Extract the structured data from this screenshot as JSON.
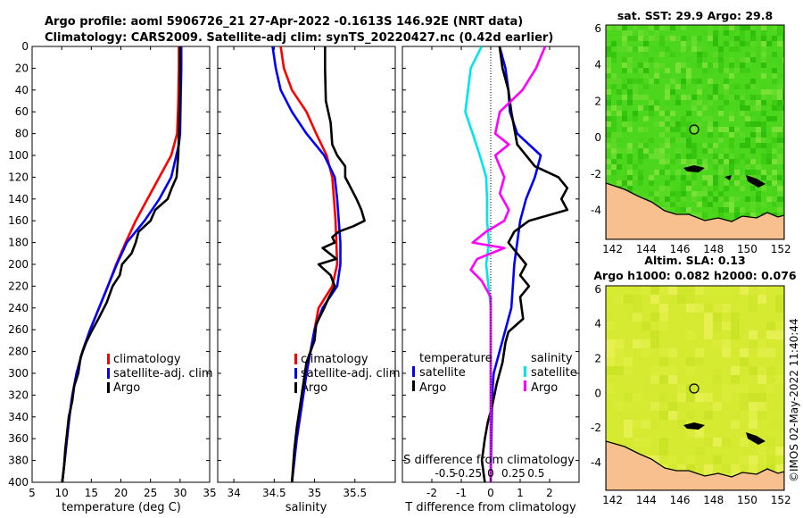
{
  "header": {
    "line1": "Argo profile: aoml 5906726_21 27-Apr-2022 -0.1613S 146.92E (NRT data)",
    "line2": "Climatology: CARS2009. Satellite-adj clim: synTS_20220427.nc (0.42d earlier)"
  },
  "watermark": "©IMOS 02-May-2022 11:40:44",
  "colors": {
    "climatology": "#ff0000",
    "satellite": "#0000ff",
    "argo": "#000000",
    "cyan": "#00e5ee",
    "magenta": "#ff00ff",
    "land": "#f7c08e",
    "sst_bg": "#4cd61c",
    "sla_bg": "#d7ea32"
  },
  "chart_data": [
    {
      "type": "line",
      "id": "temperature",
      "xlabel": "temperature (deg C)",
      "ylabel": "",
      "xlim": [
        5,
        35
      ],
      "ylim": [
        0,
        400
      ],
      "yticks": [
        0,
        20,
        40,
        60,
        80,
        100,
        120,
        140,
        160,
        180,
        200,
        220,
        240,
        260,
        280,
        300,
        320,
        340,
        360,
        380,
        400
      ],
      "xticks": [
        5,
        10,
        15,
        20,
        25,
        30,
        35
      ],
      "legend": [
        "climatology",
        "satellite-adj. clim",
        "Argo"
      ],
      "series": [
        {
          "name": "climatology",
          "color": "#ff0000",
          "points": [
            [
              29.8,
              0
            ],
            [
              29.8,
              20
            ],
            [
              29.7,
              50
            ],
            [
              29.5,
              80
            ],
            [
              28.5,
              100
            ],
            [
              26.5,
              120
            ],
            [
              24.5,
              140
            ],
            [
              22.5,
              160
            ],
            [
              20.8,
              180
            ],
            [
              19.2,
              200
            ],
            [
              17.8,
              220
            ],
            [
              16.3,
              240
            ],
            [
              14.8,
              260
            ],
            [
              13.5,
              280
            ],
            [
              12.5,
              300
            ],
            [
              11.8,
              320
            ],
            [
              11.3,
              340
            ],
            [
              10.9,
              360
            ],
            [
              10.5,
              380
            ],
            [
              10.1,
              400
            ]
          ]
        },
        {
          "name": "satellite-adj. clim",
          "color": "#0000ff",
          "points": [
            [
              30.2,
              0
            ],
            [
              30.2,
              20
            ],
            [
              30.1,
              50
            ],
            [
              30.0,
              80
            ],
            [
              29.8,
              90
            ],
            [
              28.5,
              120
            ],
            [
              26.5,
              140
            ],
            [
              24.0,
              160
            ],
            [
              21.0,
              180
            ],
            [
              19.3,
              200
            ],
            [
              17.8,
              220
            ],
            [
              16.3,
              240
            ],
            [
              14.8,
              260
            ],
            [
              13.5,
              280
            ],
            [
              12.5,
              300
            ],
            [
              11.8,
              320
            ],
            [
              11.3,
              340
            ],
            [
              10.9,
              360
            ],
            [
              10.5,
              380
            ],
            [
              10.1,
              400
            ]
          ]
        },
        {
          "name": "Argo",
          "color": "#000000",
          "points": [
            [
              30.0,
              0
            ],
            [
              30.0,
              20
            ],
            [
              30.0,
              40
            ],
            [
              29.9,
              60
            ],
            [
              29.8,
              80
            ],
            [
              29.7,
              100
            ],
            [
              29.4,
              120
            ],
            [
              28.6,
              130
            ],
            [
              27.9,
              140
            ],
            [
              25.8,
              150
            ],
            [
              25.0,
              160
            ],
            [
              23.0,
              170
            ],
            [
              22.5,
              180
            ],
            [
              21.8,
              190
            ],
            [
              20.2,
              200
            ],
            [
              19.8,
              210
            ],
            [
              18.6,
              220
            ],
            [
              17.6,
              235
            ],
            [
              16.2,
              250
            ],
            [
              15.0,
              262
            ],
            [
              14.1,
              272
            ],
            [
              13.2,
              285
            ],
            [
              12.8,
              300
            ],
            [
              12.1,
              312
            ],
            [
              11.8,
              325
            ],
            [
              11.2,
              340
            ],
            [
              10.9,
              355
            ],
            [
              10.6,
              370
            ],
            [
              10.4,
              385
            ],
            [
              10.1,
              400
            ]
          ]
        }
      ]
    },
    {
      "type": "line",
      "id": "salinity",
      "xlabel": "salinity",
      "xlim": [
        33.8,
        36.0
      ],
      "ylim": [
        0,
        400
      ],
      "xticks": [
        34,
        34.5,
        35,
        35.5
      ],
      "xticklabels": [
        "34",
        "34.5",
        "35",
        "35.5"
      ],
      "legend": [
        "climatology",
        "satellite-adj. clim",
        "Argo"
      ],
      "series": [
        {
          "name": "climatology",
          "color": "#ff0000",
          "points": [
            [
              34.58,
              0
            ],
            [
              34.62,
              20
            ],
            [
              34.72,
              40
            ],
            [
              34.9,
              60
            ],
            [
              35.02,
              80
            ],
            [
              35.15,
              100
            ],
            [
              35.22,
              120
            ],
            [
              35.24,
              140
            ],
            [
              35.26,
              160
            ],
            [
              35.27,
              180
            ],
            [
              35.28,
              200
            ],
            [
              35.22,
              220
            ],
            [
              35.05,
              240
            ],
            [
              35.0,
              260
            ],
            [
              34.95,
              280
            ],
            [
              34.9,
              300
            ],
            [
              34.86,
              320
            ],
            [
              34.82,
              340
            ],
            [
              34.78,
              360
            ],
            [
              34.75,
              380
            ],
            [
              34.72,
              400
            ]
          ]
        },
        {
          "name": "satellite-adj. clim",
          "color": "#0000ff",
          "points": [
            [
              34.48,
              0
            ],
            [
              34.52,
              20
            ],
            [
              34.58,
              40
            ],
            [
              34.72,
              60
            ],
            [
              34.9,
              80
            ],
            [
              35.12,
              100
            ],
            [
              35.25,
              120
            ],
            [
              35.28,
              140
            ],
            [
              35.3,
              160
            ],
            [
              35.32,
              180
            ],
            [
              35.32,
              200
            ],
            [
              35.28,
              220
            ],
            [
              35.1,
              240
            ],
            [
              35.0,
              260
            ],
            [
              34.95,
              280
            ],
            [
              34.9,
              300
            ],
            [
              34.86,
              320
            ],
            [
              34.82,
              340
            ],
            [
              34.78,
              360
            ],
            [
              34.75,
              380
            ],
            [
              34.72,
              400
            ]
          ]
        },
        {
          "name": "Argo",
          "color": "#000000",
          "points": [
            [
              35.13,
              0
            ],
            [
              35.13,
              20
            ],
            [
              35.14,
              50
            ],
            [
              35.2,
              70
            ],
            [
              35.22,
              90
            ],
            [
              35.28,
              100
            ],
            [
              35.38,
              110
            ],
            [
              35.38,
              120
            ],
            [
              35.45,
              130
            ],
            [
              35.52,
              140
            ],
            [
              35.58,
              150
            ],
            [
              35.62,
              160
            ],
            [
              35.48,
              165
            ],
            [
              35.3,
              170
            ],
            [
              35.22,
              175
            ],
            [
              35.25,
              180
            ],
            [
              35.1,
              185
            ],
            [
              35.27,
              195
            ],
            [
              35.05,
              200
            ],
            [
              35.2,
              210
            ],
            [
              35.25,
              220
            ],
            [
              35.18,
              230
            ],
            [
              35.12,
              240
            ],
            [
              35.02,
              255
            ],
            [
              35.0,
              270
            ],
            [
              34.9,
              290
            ],
            [
              34.86,
              310
            ],
            [
              34.82,
              330
            ],
            [
              34.78,
              350
            ],
            [
              34.75,
              370
            ],
            [
              34.72,
              400
            ]
          ]
        }
      ]
    },
    {
      "type": "line",
      "id": "difference",
      "xlabel": "T difference from climatology",
      "xlabel_top": "S difference from climatology",
      "xlim": [
        -3.0,
        3.0
      ],
      "ylim": [
        0,
        400
      ],
      "xticks": [
        -2,
        -1,
        0,
        1,
        2
      ],
      "sticks": [
        -0.5,
        -0.25,
        0,
        0.25,
        0.5
      ],
      "sticklabels": [
        "-0.5",
        "-0.25",
        "0",
        "0.25",
        "0.5"
      ],
      "legend_t_title": "temperature",
      "legend_s_title": "salinity",
      "legend_t": [
        "satellite",
        "Argo"
      ],
      "legend_s": [
        "satellite",
        "Argo"
      ],
      "series": [
        {
          "name": "T satellite",
          "color": "#0000ff",
          "points": [
            [
              0.3,
              0
            ],
            [
              0.5,
              20
            ],
            [
              0.6,
              40
            ],
            [
              0.65,
              60
            ],
            [
              0.9,
              80
            ],
            [
              1.7,
              100
            ],
            [
              1.5,
              120
            ],
            [
              1.2,
              140
            ],
            [
              1.0,
              160
            ],
            [
              0.9,
              180
            ],
            [
              0.8,
              200
            ],
            [
              0.75,
              220
            ],
            [
              0.7,
              240
            ],
            [
              0.5,
              260
            ],
            [
              0.3,
              280
            ],
            [
              0.1,
              300
            ],
            [
              0.05,
              320
            ],
            [
              0,
              400
            ]
          ]
        },
        {
          "name": "T Argo",
          "color": "#000000",
          "points": [
            [
              0.3,
              0
            ],
            [
              0.4,
              20
            ],
            [
              0.6,
              40
            ],
            [
              0.7,
              60
            ],
            [
              0.9,
              90
            ],
            [
              1.5,
              110
            ],
            [
              2.3,
              120
            ],
            [
              2.6,
              130
            ],
            [
              2.4,
              140
            ],
            [
              2.6,
              150
            ],
            [
              1.3,
              160
            ],
            [
              0.8,
              170
            ],
            [
              0.6,
              180
            ],
            [
              0.9,
              190
            ],
            [
              1.2,
              200
            ],
            [
              1.0,
              210
            ],
            [
              1.3,
              220
            ],
            [
              1.0,
              230
            ],
            [
              1.1,
              250
            ],
            [
              0.6,
              262
            ],
            [
              0.5,
              272
            ],
            [
              0.4,
              290
            ],
            [
              0.2,
              310
            ],
            [
              0.05,
              330
            ],
            [
              -0.1,
              345
            ],
            [
              -0.2,
              360
            ],
            [
              -0.3,
              380
            ],
            [
              -0.2,
              400
            ]
          ]
        },
        {
          "name": "S satellite",
          "color": "#00e5ee",
          "points": [
            [
              -0.1,
              0
            ],
            [
              -0.22,
              20
            ],
            [
              -0.25,
              40
            ],
            [
              -0.28,
              60
            ],
            [
              -0.2,
              80
            ],
            [
              -0.12,
              100
            ],
            [
              -0.05,
              120
            ],
            [
              -0.04,
              140
            ],
            [
              -0.04,
              160
            ],
            [
              -0.02,
              180
            ],
            [
              -0.05,
              200
            ],
            [
              0,
              240
            ],
            [
              0,
              300
            ],
            [
              0,
              400
            ]
          ]
        },
        {
          "name": "S Argo",
          "color": "#ff00ff",
          "points": [
            [
              0.6,
              0
            ],
            [
              0.5,
              20
            ],
            [
              0.35,
              40
            ],
            [
              0.1,
              60
            ],
            [
              0.05,
              80
            ],
            [
              0.2,
              90
            ],
            [
              0.05,
              100
            ],
            [
              0.15,
              120
            ],
            [
              0.1,
              135
            ],
            [
              0.2,
              150
            ],
            [
              0.15,
              160
            ],
            [
              -0.05,
              170
            ],
            [
              -0.2,
              180
            ],
            [
              0.15,
              185
            ],
            [
              -0.15,
              195
            ],
            [
              -0.22,
              205
            ],
            [
              -0.1,
              215
            ],
            [
              0,
              230
            ],
            [
              0,
              260
            ],
            [
              0,
              400
            ]
          ]
        }
      ]
    },
    {
      "type": "heatmap",
      "id": "sst_map",
      "title": "sat. SST: 29.9 Argo: 29.8",
      "xlim": [
        141.6,
        152.2
      ],
      "ylim": [
        -5.6,
        6.2
      ],
      "xticks": [
        142,
        144,
        146,
        148,
        150,
        152
      ],
      "yticks": [
        -4,
        -2,
        0,
        2,
        4,
        6
      ],
      "marker": [
        146.92,
        -0.16
      ]
    },
    {
      "type": "heatmap",
      "id": "sla_map",
      "title": "Altim. SLA: 0.13",
      "subtitle": "Argo h1000: 0.082 h2000: 0.076",
      "xlim": [
        141.6,
        152.2
      ],
      "ylim": [
        -5.6,
        6.2
      ],
      "xticks": [
        142,
        144,
        146,
        148,
        150,
        152
      ],
      "yticks": [
        -4,
        -2,
        0,
        2,
        4,
        6
      ],
      "marker": [
        146.92,
        -0.16
      ]
    }
  ]
}
